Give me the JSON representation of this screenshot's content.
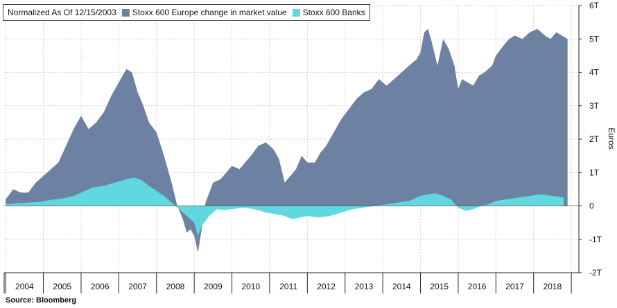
{
  "chart_data": {
    "type": "area",
    "legend": {
      "label": "Normalized As Of 12/15/2003",
      "placement": "top-left"
    },
    "ylabel": "Euros",
    "ylim": [
      -2,
      6
    ],
    "yticks": [
      -2,
      -1,
      0,
      1,
      2,
      3,
      4,
      5,
      6
    ],
    "ytick_labels": [
      "-2T",
      "-1T",
      "0",
      "1T",
      "2T",
      "3T",
      "4T",
      "5T",
      "6T"
    ],
    "xlim": [
      2003.96,
      2019.2
    ],
    "xtick_labels": [
      "2004",
      "2005",
      "2006",
      "2007",
      "2008",
      "2009",
      "2010",
      "2011",
      "2012",
      "2013",
      "2014",
      "2015",
      "2016",
      "2017",
      "2018"
    ],
    "grid": true,
    "series": [
      {
        "name": "Stoxx 600 Europe change in market value",
        "color": "#6d82a3",
        "x": [
          2004.0,
          2004.2,
          2004.4,
          2004.6,
          2004.8,
          2005.0,
          2005.2,
          2005.4,
          2005.6,
          2005.8,
          2006.0,
          2006.2,
          2006.4,
          2006.6,
          2006.8,
          2007.0,
          2007.2,
          2007.35,
          2007.5,
          2007.65,
          2007.8,
          2008.0,
          2008.2,
          2008.4,
          2008.55,
          2008.7,
          2008.8,
          2008.9,
          2009.0,
          2009.1,
          2009.17,
          2009.3,
          2009.5,
          2009.7,
          2009.85,
          2010.0,
          2010.2,
          2010.35,
          2010.5,
          2010.7,
          2010.9,
          2011.1,
          2011.25,
          2011.4,
          2011.55,
          2011.7,
          2011.85,
          2012.0,
          2012.2,
          2012.35,
          2012.5,
          2012.7,
          2012.9,
          2013.1,
          2013.3,
          2013.5,
          2013.7,
          2013.9,
          2014.1,
          2014.3,
          2014.5,
          2014.7,
          2014.9,
          2015.0,
          2015.1,
          2015.2,
          2015.3,
          2015.45,
          2015.6,
          2015.75,
          2015.9,
          2016.0,
          2016.1,
          2016.25,
          2016.4,
          2016.55,
          2016.7,
          2016.9,
          2017.0,
          2017.2,
          2017.35,
          2017.5,
          2017.7,
          2017.9,
          2018.1,
          2018.3,
          2018.45,
          2018.6,
          2018.75,
          2018.9
        ],
        "values": [
          0.2,
          0.5,
          0.4,
          0.4,
          0.7,
          0.9,
          1.1,
          1.3,
          1.8,
          2.3,
          2.7,
          2.3,
          2.5,
          2.8,
          3.3,
          3.7,
          4.1,
          4.0,
          3.4,
          3.0,
          2.5,
          2.2,
          1.5,
          0.7,
          0.0,
          -0.4,
          -0.8,
          -0.7,
          -0.9,
          -1.4,
          -0.9,
          0.1,
          0.7,
          0.8,
          1.0,
          1.2,
          1.1,
          1.3,
          1.5,
          1.8,
          1.9,
          1.7,
          1.4,
          0.7,
          0.9,
          1.1,
          1.5,
          1.3,
          1.3,
          1.6,
          1.8,
          2.2,
          2.6,
          2.9,
          3.2,
          3.4,
          3.5,
          3.8,
          3.6,
          3.8,
          4.0,
          4.2,
          4.4,
          4.6,
          5.2,
          5.3,
          4.9,
          4.2,
          5.0,
          4.7,
          4.2,
          3.5,
          3.8,
          3.7,
          3.6,
          3.9,
          4.0,
          4.2,
          4.5,
          4.8,
          5.0,
          5.1,
          5.0,
          5.2,
          5.3,
          5.1,
          5.0,
          5.2,
          5.1,
          5.0
        ]
      },
      {
        "name": "Stoxx 600 Banks",
        "color": "#5fd8e0",
        "x": [
          2004.0,
          2004.3,
          2004.6,
          2004.9,
          2005.2,
          2005.5,
          2005.8,
          2006.1,
          2006.3,
          2006.6,
          2006.9,
          2007.2,
          2007.4,
          2007.6,
          2007.8,
          2008.0,
          2008.2,
          2008.4,
          2008.6,
          2008.8,
          2009.0,
          2009.1,
          2009.2,
          2009.4,
          2009.6,
          2009.8,
          2010.0,
          2010.3,
          2010.6,
          2010.9,
          2011.2,
          2011.4,
          2011.6,
          2011.8,
          2012.0,
          2012.3,
          2012.6,
          2012.9,
          2013.2,
          2013.5,
          2013.8,
          2014.1,
          2014.4,
          2014.7,
          2015.0,
          2015.2,
          2015.4,
          2015.6,
          2015.8,
          2016.0,
          2016.2,
          2016.4,
          2016.6,
          2016.8,
          2017.0,
          2017.3,
          2017.6,
          2017.9,
          2018.2,
          2018.5,
          2018.8
        ],
        "values": [
          0.05,
          0.08,
          0.1,
          0.12,
          0.18,
          0.22,
          0.3,
          0.45,
          0.55,
          0.6,
          0.7,
          0.8,
          0.85,
          0.78,
          0.6,
          0.45,
          0.3,
          0.1,
          -0.1,
          -0.3,
          -0.5,
          -0.9,
          -0.6,
          -0.3,
          -0.1,
          -0.12,
          -0.1,
          -0.05,
          -0.1,
          -0.2,
          -0.25,
          -0.3,
          -0.4,
          -0.35,
          -0.3,
          -0.35,
          -0.3,
          -0.2,
          -0.1,
          -0.05,
          0.0,
          0.05,
          0.1,
          0.15,
          0.3,
          0.35,
          0.38,
          0.3,
          0.2,
          -0.05,
          -0.15,
          -0.1,
          0.0,
          0.05,
          0.15,
          0.2,
          0.25,
          0.3,
          0.35,
          0.3,
          0.25
        ]
      }
    ],
    "source": "Source:  Bloomberg"
  }
}
